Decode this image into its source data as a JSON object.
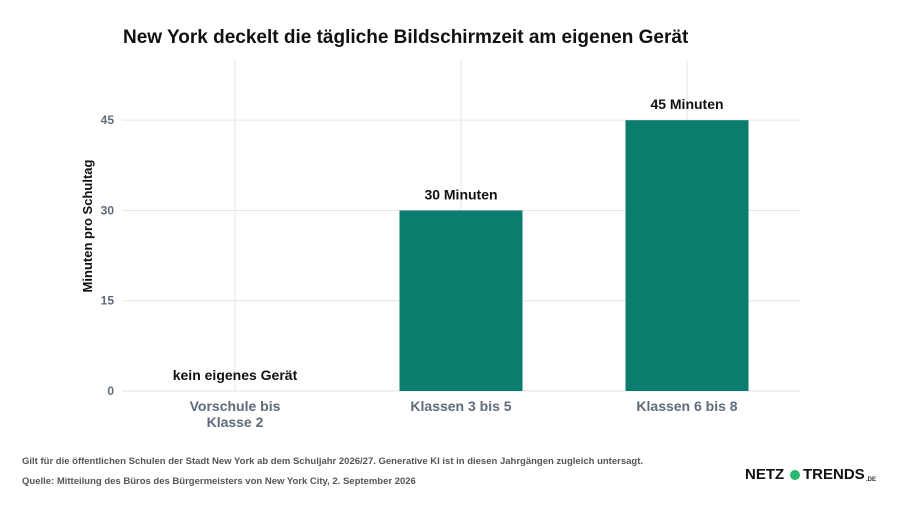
{
  "chart_data": {
    "type": "bar",
    "title": "New York deckelt die tägliche Bildschirmzeit am eigenen Gerät",
    "xlabel": "",
    "ylabel": "Minuten pro Schultag",
    "categories": [
      [
        "Vorschule bis",
        "Klasse 2"
      ],
      [
        "Klassen 3 bis 5"
      ],
      [
        "Klassen 6 bis 8"
      ]
    ],
    "values": [
      0,
      30,
      45
    ],
    "data_labels": [
      "kein eigenes Gerät",
      "30 Minuten",
      "45 Minuten"
    ],
    "ylim": [
      0,
      55
    ],
    "yticks": [
      0,
      15,
      30,
      45
    ],
    "grid": true,
    "bar_color": "#0b7d6e"
  },
  "footnote": "Gilt für die öffentlichen Schulen der Stadt New York ab dem Schuljahr 2026/27. Generative KI ist in diesen Jahrgängen zugleich untersagt.",
  "source": "Quelle: Mitteilung des Büros des Bürgermeisters von New York City, 2. September 2026",
  "logo": {
    "left": "NETZ",
    "right": "TRENDS",
    "suffix": ".DE",
    "dot_color": "#2bb673"
  }
}
